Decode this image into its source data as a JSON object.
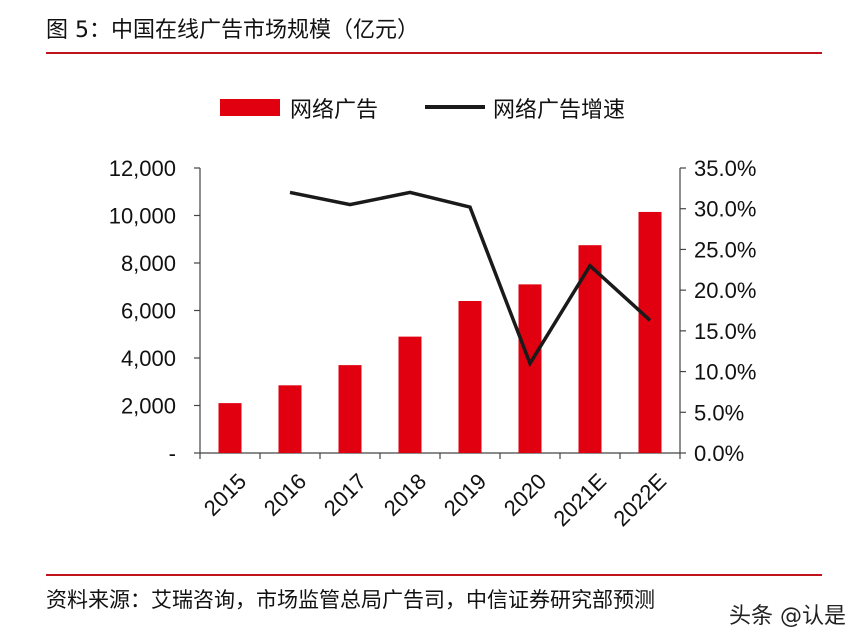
{
  "title": "图 5：中国在线广告市场规模（亿元）",
  "source": "资料来源：艾瑞咨询，市场监管总局广告司，中信证券研究部预测",
  "watermark": "头条 @认是",
  "colors": {
    "bar": "#e1000f",
    "line": "#1a1a1a",
    "rule": "#c0121a"
  },
  "chart_data": {
    "type": "bar",
    "categories": [
      "2015",
      "2016",
      "2017",
      "2018",
      "2019",
      "2020",
      "2021E",
      "2022E"
    ],
    "series": [
      {
        "name": "网络广告",
        "type": "bar",
        "axis": "left",
        "values": [
          2100,
          2850,
          3700,
          4900,
          6400,
          7100,
          8750,
          10150
        ]
      },
      {
        "name": "网络广告增速",
        "type": "line",
        "axis": "right",
        "values": [
          null,
          32.0,
          30.5,
          32.0,
          30.2,
          11.0,
          23.0,
          16.3
        ]
      }
    ],
    "y_left": {
      "min": 0,
      "max": 12000,
      "ticks": [
        "-",
        "2,000",
        "4,000",
        "6,000",
        "8,000",
        "10,000",
        "12,000"
      ]
    },
    "y_right": {
      "min": 0,
      "max": 35,
      "ticks": [
        "0.0%",
        "5.0%",
        "10.0%",
        "15.0%",
        "20.0%",
        "25.0%",
        "30.0%",
        "35.0%"
      ]
    },
    "legend": {
      "placement": "top",
      "items": [
        "网络广告",
        "网络广告增速"
      ]
    },
    "grid": false
  }
}
